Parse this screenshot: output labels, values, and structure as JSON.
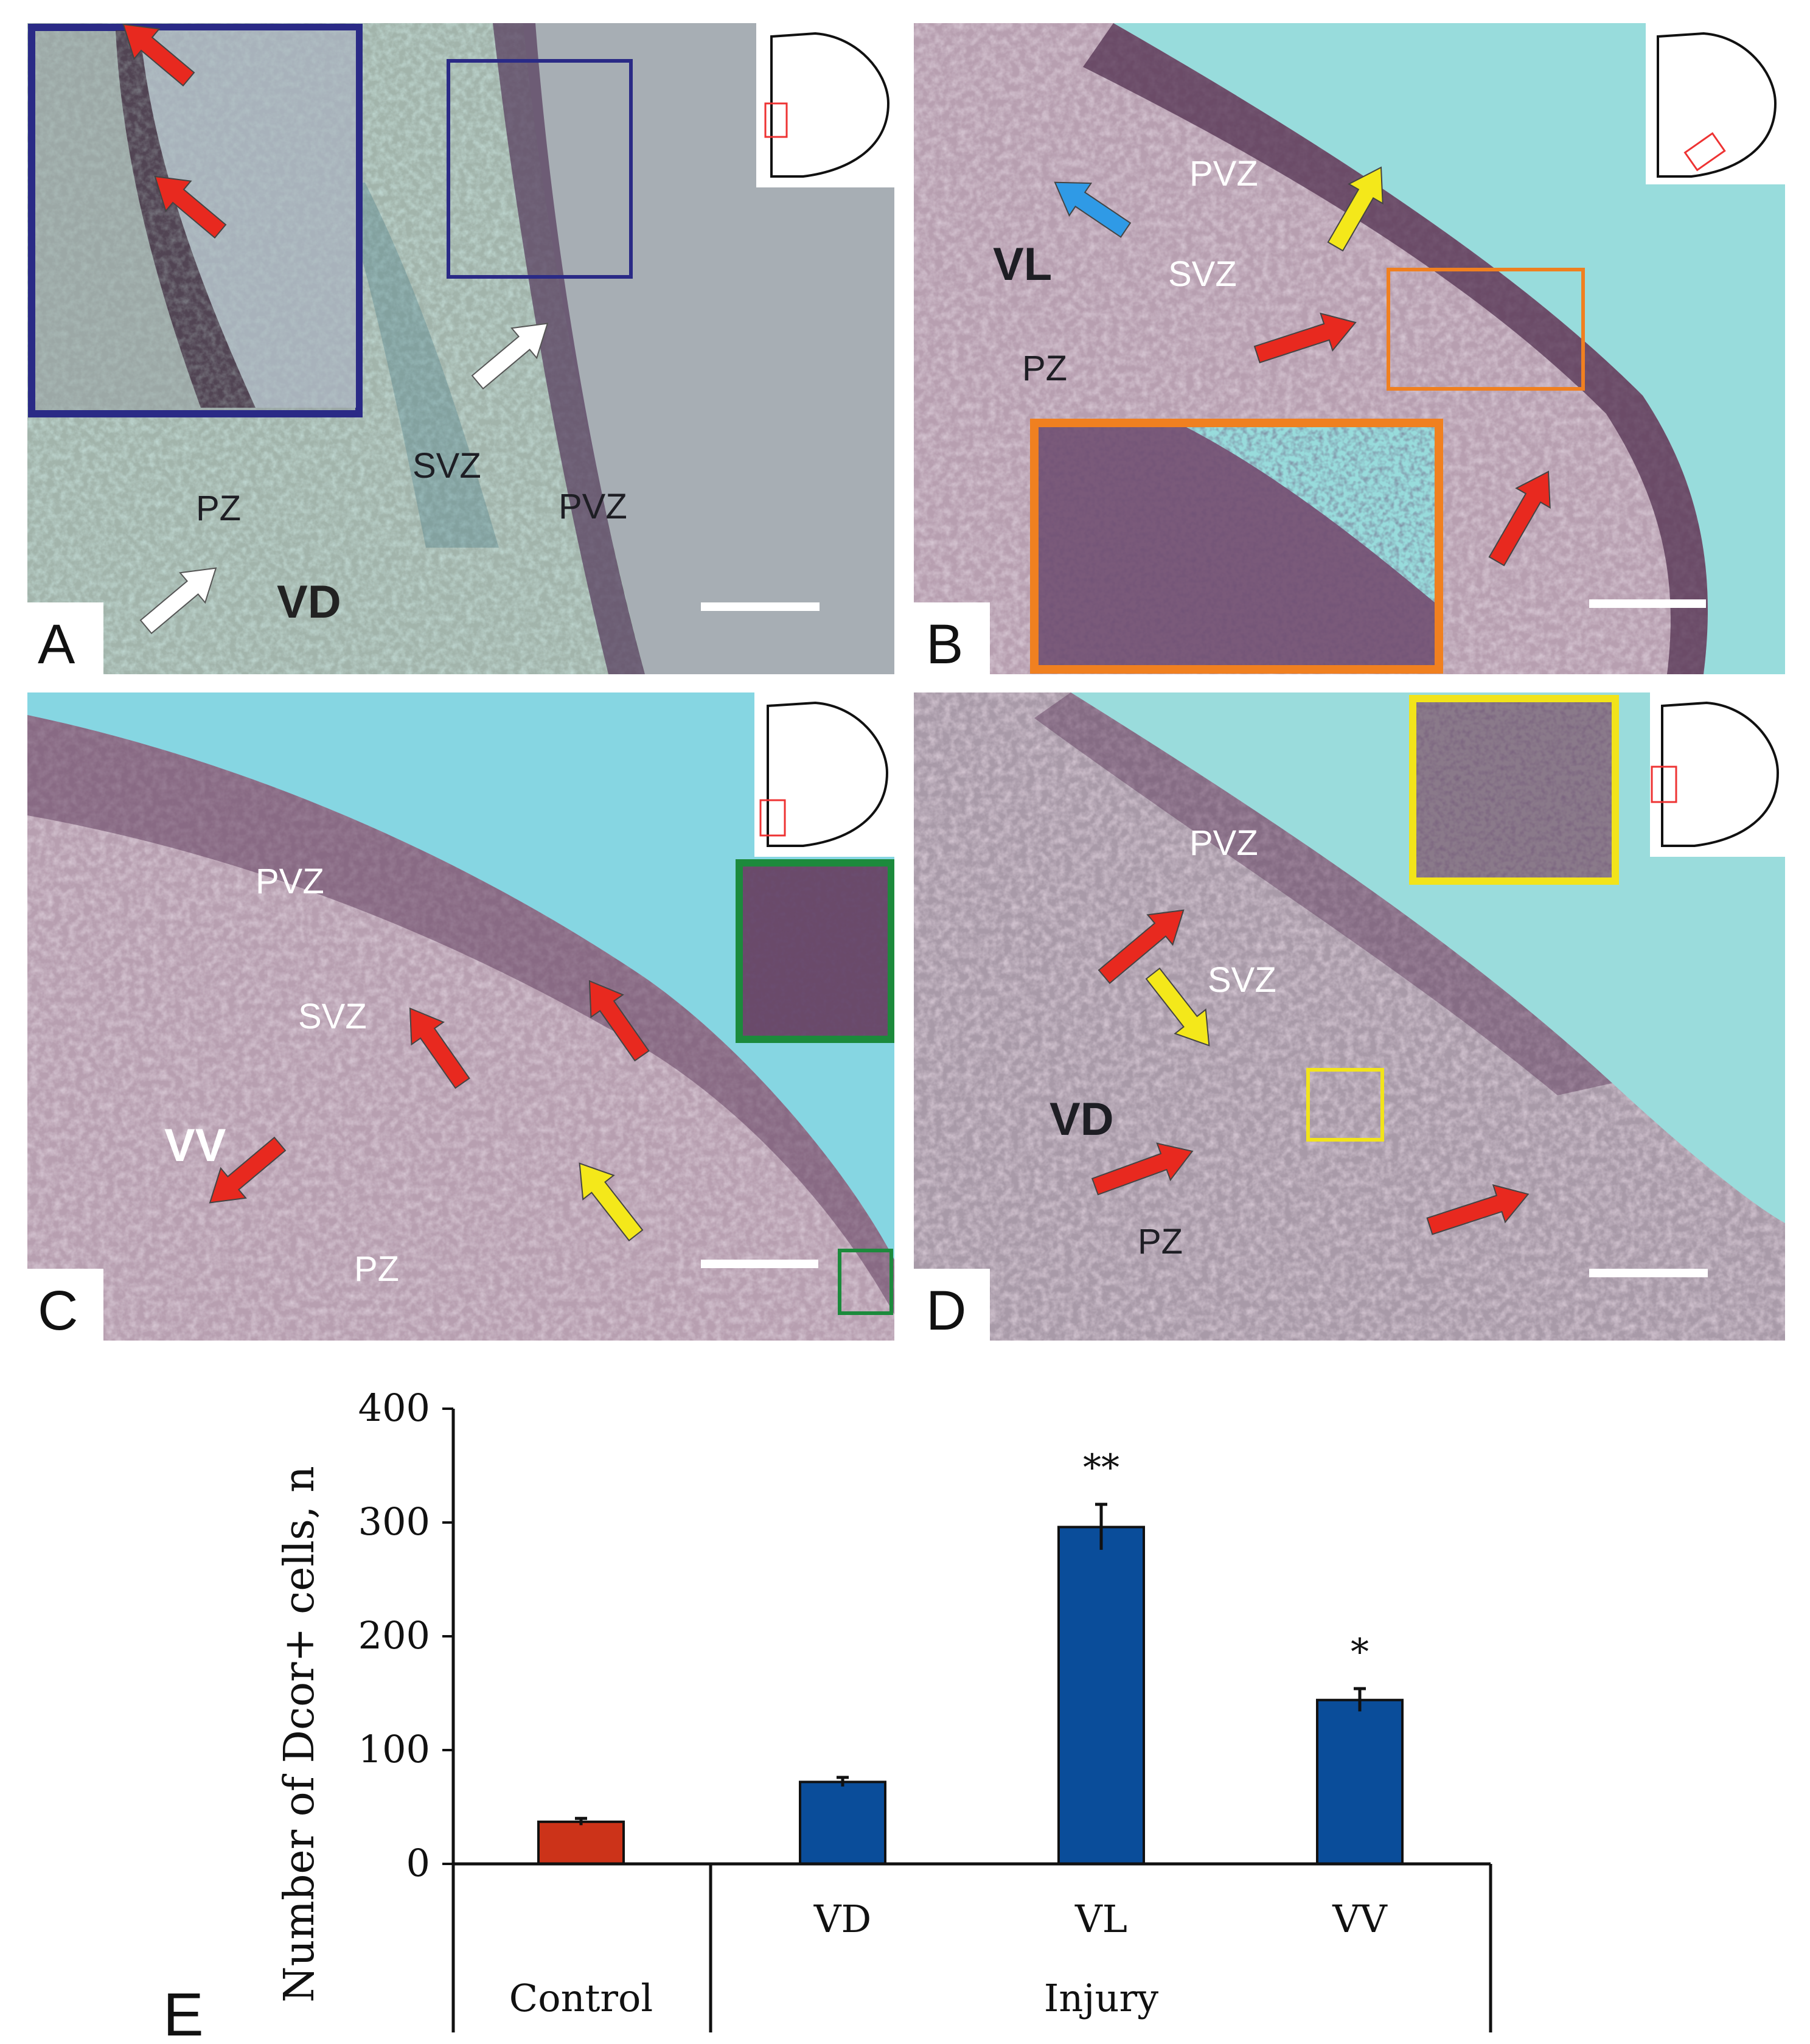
{
  "colors": {
    "control_bar": "#cc3319",
    "injury_bar": "#0a4d9a",
    "arrow_red": "#e8291f",
    "arrow_white": "#ffffff",
    "arrow_yellow": "#f4e81a",
    "arrow_blue": "#2f9ae6",
    "inset_navy": "#2a2a86",
    "inset_orange": "#f08020",
    "inset_green": "#1c8a3c",
    "inset_yellow": "#f2e41a"
  },
  "panels": {
    "A": {
      "label": "A",
      "zones": {
        "pz": "PZ",
        "svz": "SVZ",
        "pvz": "PVZ"
      },
      "region": "VD"
    },
    "B": {
      "label": "B",
      "zones": {
        "pvz": "PVZ",
        "svz": "SVZ",
        "pz": "PZ"
      },
      "region": "VL"
    },
    "C": {
      "label": "C",
      "zones": {
        "pvz": "PVZ",
        "svz": "SVZ",
        "pz": "PZ"
      },
      "region": "VV"
    },
    "D": {
      "label": "D",
      "zones": {
        "pvz": "PVZ",
        "svz": "SVZ",
        "pz": "PZ"
      },
      "region": "VD"
    }
  },
  "chart_data": {
    "type": "bar",
    "panel_label": "E",
    "ylabel": "Number of Dcor+ cells, n",
    "ylim": [
      0,
      400
    ],
    "yticks": [
      0,
      100,
      200,
      300,
      400
    ],
    "categories": [
      "Control",
      "VD",
      "VL",
      "VV"
    ],
    "groups": [
      {
        "name": "Control",
        "categories": [
          "Control"
        ]
      },
      {
        "name": "Injury",
        "categories": [
          "VD",
          "VL",
          "VV"
        ]
      }
    ],
    "values": [
      37,
      72,
      296,
      144
    ],
    "errors": [
      3,
      4,
      20,
      10
    ],
    "significance": [
      "",
      "",
      "**",
      "*"
    ],
    "bar_colors": [
      "control",
      "injury",
      "injury",
      "injury"
    ]
  }
}
